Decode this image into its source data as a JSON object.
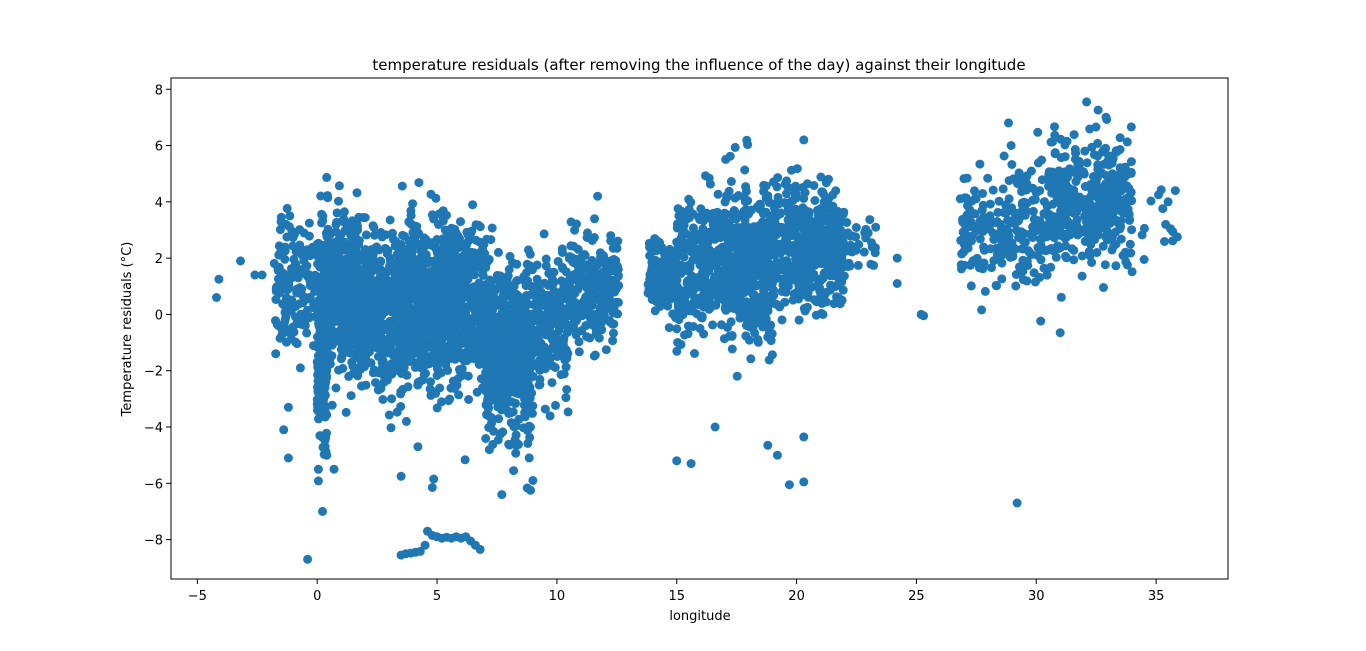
{
  "chart_data": {
    "type": "scatter",
    "title": "temperature residuals (after removing the influence of the day) against their longitude",
    "xlabel": "longitude",
    "ylabel": "Temperature residuals (°C)",
    "xlim": [
      -6.1,
      38.0
    ],
    "ylim": [
      -9.4,
      8.4
    ],
    "xticks": [
      -5,
      0,
      5,
      10,
      15,
      20,
      25,
      30,
      35
    ],
    "yticks": [
      -8,
      -6,
      -4,
      -2,
      0,
      2,
      4,
      6,
      8
    ],
    "grid": false,
    "legend": "none",
    "marker_color": "#1f77b4",
    "clusters": [
      {
        "x_range": [
          -1.8,
          0.0
        ],
        "y_mean": 0.9,
        "y_sd": 1.1,
        "count": 150
      },
      {
        "x_range": [
          0.0,
          0.4
        ],
        "y_mean": -1.0,
        "y_sd": 2.0,
        "count": 220
      },
      {
        "x_range": [
          0.4,
          1.8
        ],
        "y_mean": 0.8,
        "y_sd": 1.2,
        "count": 500
      },
      {
        "x_range": [
          1.8,
          3.5
        ],
        "y_mean": 0.2,
        "y_sd": 1.3,
        "count": 400
      },
      {
        "x_range": [
          3.5,
          7.0
        ],
        "y_mean": 0.3,
        "y_sd": 1.5,
        "count": 900
      },
      {
        "x_range": [
          7.0,
          9.0
        ],
        "y_mean": -1.3,
        "y_sd": 1.5,
        "count": 550
      },
      {
        "x_range": [
          9.0,
          10.5
        ],
        "y_mean": -0.3,
        "y_sd": 1.2,
        "count": 200
      },
      {
        "x_range": [
          10.5,
          12.6
        ],
        "y_mean": 0.9,
        "y_sd": 1.0,
        "count": 230
      },
      {
        "x_range": [
          13.8,
          15.0
        ],
        "y_mean": 1.3,
        "y_sd": 0.7,
        "count": 140
      },
      {
        "x_range": [
          15.0,
          17.0
        ],
        "y_mean": 1.6,
        "y_sd": 1.2,
        "count": 280
      },
      {
        "x_range": [
          17.0,
          19.0
        ],
        "y_mean": 1.8,
        "y_sd": 1.3,
        "count": 450
      },
      {
        "x_range": [
          19.0,
          22.0
        ],
        "y_mean": 2.4,
        "y_sd": 1.1,
        "count": 450
      },
      {
        "x_range": [
          22.0,
          23.3
        ],
        "y_mean": 2.4,
        "y_sd": 0.6,
        "count": 30
      },
      {
        "x_range": [
          26.8,
          30.5
        ],
        "y_mean": 3.1,
        "y_sd": 1.2,
        "count": 230
      },
      {
        "x_range": [
          30.5,
          34.0
        ],
        "y_mean": 4.0,
        "y_sd": 1.1,
        "count": 380
      },
      {
        "x_range": [
          34.0,
          35.9
        ],
        "y_mean": 3.6,
        "y_sd": 0.8,
        "count": 10
      }
    ],
    "points": [
      [
        -4.2,
        0.6
      ],
      [
        -4.1,
        1.25
      ],
      [
        -3.2,
        1.9
      ],
      [
        -2.6,
        1.4
      ],
      [
        -2.3,
        1.4
      ],
      [
        -1.5,
        3.45
      ],
      [
        -1.3,
        3.2
      ],
      [
        -1.4,
        -4.1
      ],
      [
        -1.2,
        -3.3
      ],
      [
        -1.2,
        -5.1
      ],
      [
        -0.7,
        -1.9
      ],
      [
        -0.4,
        -8.7
      ],
      [
        0.4,
        -5.0
      ],
      [
        0.7,
        -5.5
      ],
      [
        3.5,
        -5.75
      ],
      [
        4.2,
        -4.7
      ],
      [
        4.8,
        -6.15
      ],
      [
        7.7,
        -6.4
      ],
      [
        8.9,
        -6.25
      ],
      [
        9.0,
        -5.9
      ],
      [
        11.7,
        4.2
      ],
      [
        15.0,
        -5.2
      ],
      [
        15.6,
        -5.3
      ],
      [
        16.6,
        -4.0
      ],
      [
        18.8,
        -4.65
      ],
      [
        19.2,
        -5.0
      ],
      [
        19.7,
        -6.05
      ],
      [
        20.3,
        -5.95
      ],
      [
        20.3,
        -4.35
      ],
      [
        20.3,
        6.2
      ],
      [
        23.3,
        3.1
      ],
      [
        24.2,
        2.0
      ],
      [
        24.2,
        1.1
      ],
      [
        25.2,
        0.0
      ],
      [
        25.3,
        -0.05
      ],
      [
        29.2,
        -6.7
      ],
      [
        31.0,
        -0.65
      ],
      [
        32.1,
        7.55
      ],
      [
        34.5,
        1.95
      ],
      [
        35.1,
        4.25
      ],
      [
        35.4,
        3.2
      ],
      [
        35.5,
        4.0
      ],
      [
        35.8,
        4.4
      ],
      [
        3.5,
        -8.55
      ],
      [
        3.7,
        -8.5
      ],
      [
        3.9,
        -8.48
      ],
      [
        4.1,
        -8.45
      ],
      [
        4.3,
        -8.42
      ],
      [
        4.5,
        -8.2
      ],
      [
        4.6,
        -7.7
      ],
      [
        4.8,
        -7.85
      ],
      [
        5.0,
        -7.9
      ],
      [
        5.2,
        -7.95
      ],
      [
        5.4,
        -7.92
      ],
      [
        5.6,
        -7.95
      ],
      [
        5.8,
        -7.9
      ],
      [
        6.0,
        -7.95
      ],
      [
        6.2,
        -7.9
      ],
      [
        6.4,
        -8.05
      ],
      [
        6.6,
        -8.2
      ],
      [
        6.8,
        -8.35
      ]
    ]
  }
}
